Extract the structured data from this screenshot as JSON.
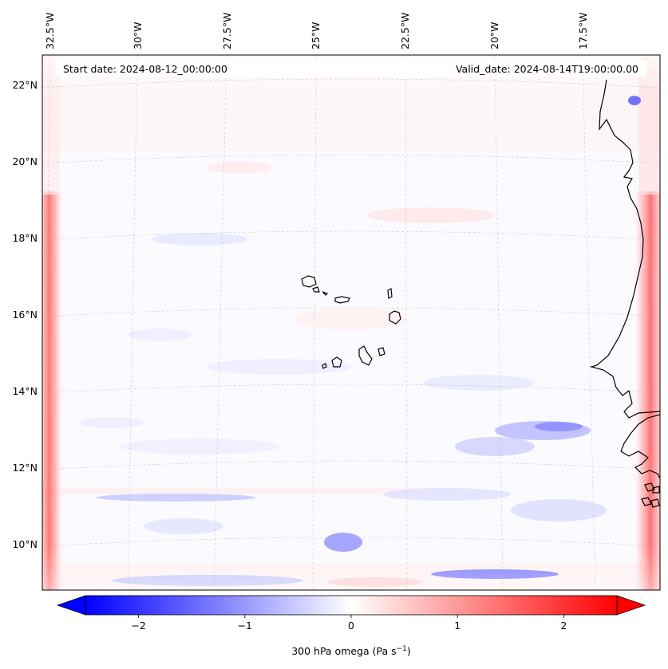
{
  "map": {
    "start_date_text": "Start date: 2024-08-12_00:00:00",
    "valid_date_text": "Valid_date: 2024-08-14T19:00:00.00",
    "longitude_labels": [
      "32.5°W",
      "30°W",
      "27.5°W",
      "25°W",
      "22.5°W",
      "20°W",
      "17.5°W"
    ],
    "latitude_labels": [
      "22°N",
      "20°N",
      "18°N",
      "16°N",
      "14°N",
      "12°N",
      "10°N"
    ],
    "field": "300 hPa omega",
    "gridlines": true,
    "colors": {
      "negative": "#0000ff",
      "zero": "#ffffff",
      "positive": "#ff0000",
      "coastline": "#000000",
      "gridline": "#b0b0b0"
    }
  },
  "colorbar": {
    "label_main": "300 hPa omega (Pa s",
    "label_exp": "−1",
    "label_close": ")",
    "ticks": [
      "−2",
      "−1",
      "0",
      "1",
      "2"
    ],
    "tick_values": [
      -2,
      -1,
      0,
      1,
      2
    ],
    "range": [
      -2.5,
      2.5
    ],
    "extend": "both",
    "cmap": "bwr"
  }
}
